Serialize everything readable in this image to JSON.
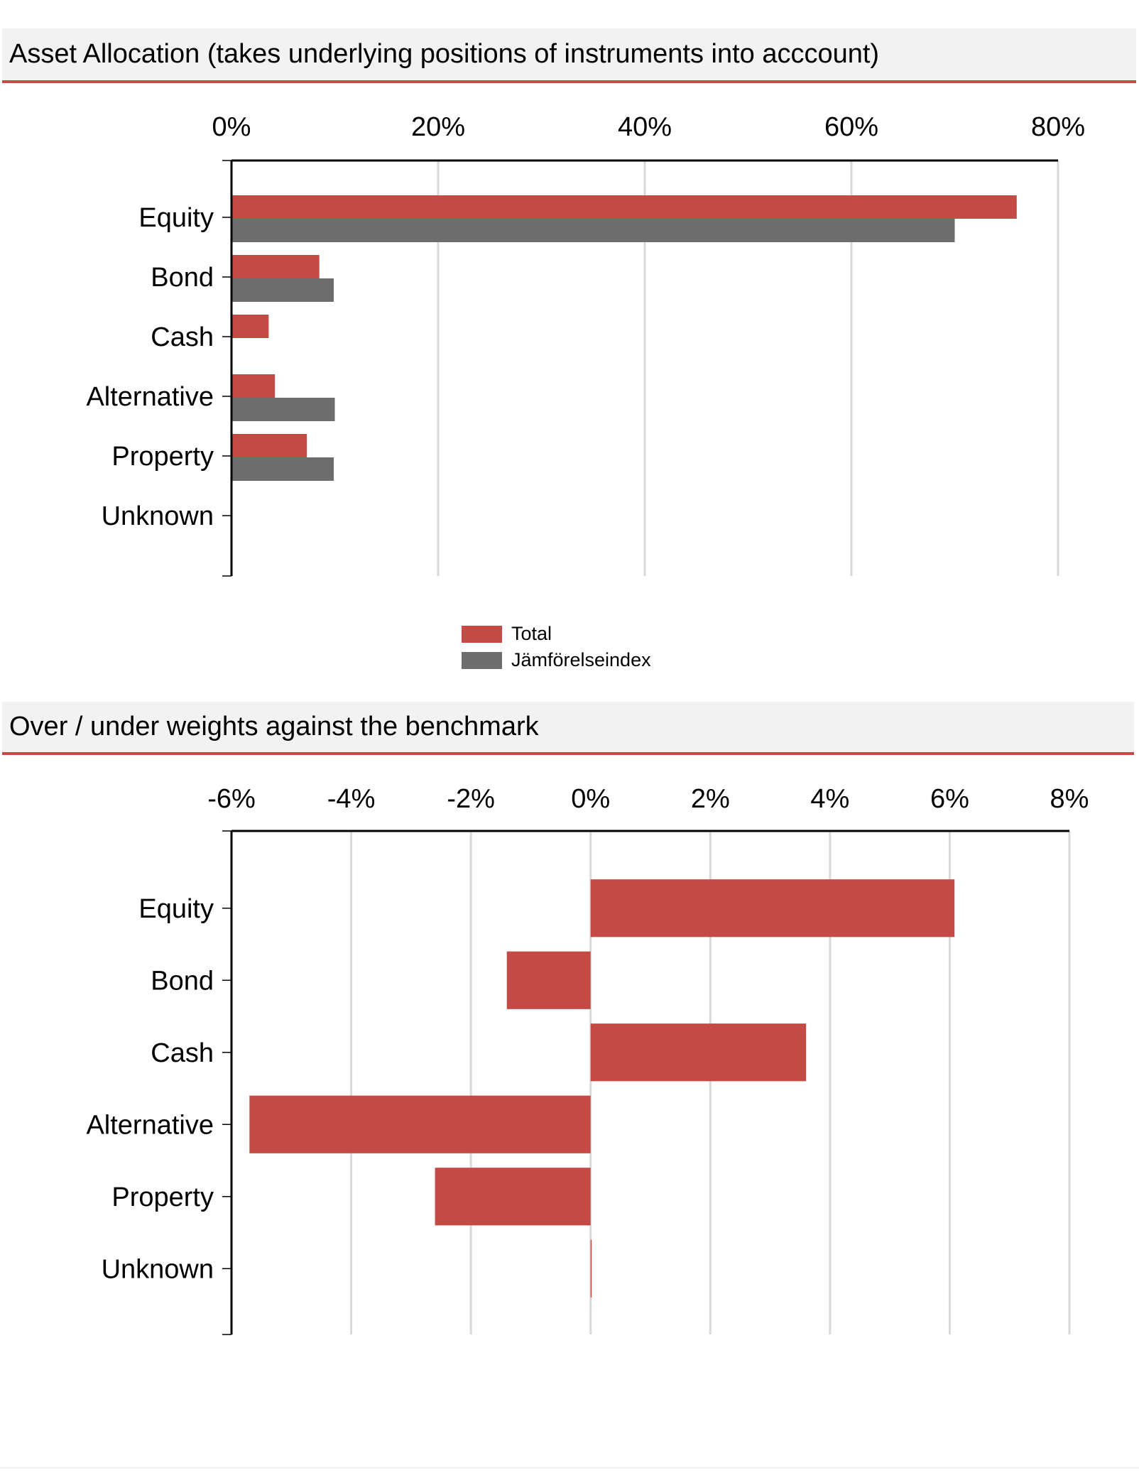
{
  "colors": {
    "total": "#c44a46",
    "benchmark": "#6d6d6d",
    "gridline": "#d9d9d9",
    "header_bg": "#f2f2f2",
    "header_rule": "#c44a46"
  },
  "sections": [
    {
      "title": "Asset Allocation (takes underlying positions of instruments into acccount)"
    },
    {
      "title": "Over / under weights against the benchmark"
    }
  ],
  "chart_data": [
    {
      "type": "bar",
      "orientation": "horizontal",
      "title": "Asset Allocation (takes underlying positions of instruments into acccount)",
      "categories": [
        "Equity",
        "Bond",
        "Cash",
        "Alternative",
        "Property",
        "Unknown"
      ],
      "series": [
        {
          "name": "Total",
          "values": [
            76,
            8.5,
            3.6,
            4.2,
            7.3,
            0
          ]
        },
        {
          "name": "Jämförelseindex",
          "values": [
            70,
            9.9,
            0,
            10.0,
            9.9,
            0
          ]
        }
      ],
      "xlim": [
        0,
        80
      ],
      "x_ticks": [
        "0%",
        "20%",
        "40%",
        "60%",
        "80%"
      ],
      "x_tick_values": [
        0,
        20,
        40,
        60,
        80
      ],
      "x_axis_position": "top",
      "grid": true,
      "legend": {
        "position": "bottom-center",
        "entries": [
          "Total",
          "Jämförelseindex"
        ]
      }
    },
    {
      "type": "bar",
      "orientation": "horizontal",
      "title": "Over / under weights against the benchmark",
      "categories": [
        "Equity",
        "Bond",
        "Cash",
        "Alternative",
        "Property",
        "Unknown"
      ],
      "series": [
        {
          "values": [
            6.08,
            -1.4,
            3.6,
            -5.7,
            -2.6,
            0
          ]
        }
      ],
      "xlim": [
        -6,
        8
      ],
      "x_ticks": [
        "-6%",
        "-4%",
        "-2%",
        "0%",
        "2%",
        "4%",
        "6%",
        "8%"
      ],
      "x_tick_values": [
        -6,
        -4,
        -2,
        0,
        2,
        4,
        6,
        8
      ],
      "x_axis_position": "top",
      "grid": true
    }
  ]
}
